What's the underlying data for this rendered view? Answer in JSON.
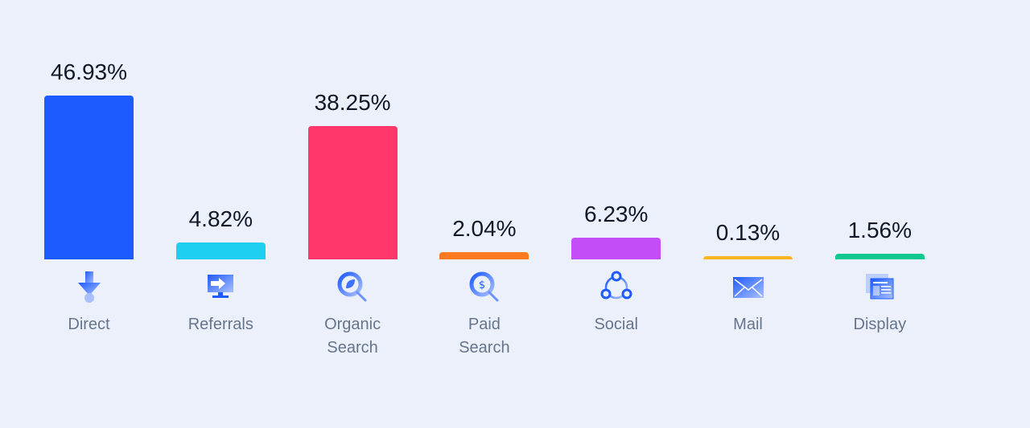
{
  "chart_data": {
    "type": "bar",
    "title": "",
    "xlabel": "",
    "ylabel": "",
    "ylim": [
      0,
      46.93
    ],
    "grid": false,
    "categories": [
      "Direct",
      "Referrals",
      "Organic\nSearch",
      "Paid\nSearch",
      "Social",
      "Mail",
      "Display"
    ],
    "values": [
      46.93,
      4.82,
      38.25,
      2.04,
      6.23,
      0.13,
      1.56
    ],
    "value_labels": [
      "46.93%",
      "4.82%",
      "38.25%",
      "2.04%",
      "6.23%",
      "0.13%",
      "1.56%"
    ],
    "colors": [
      "#1d5bff",
      "#1fcff2",
      "#ff376b",
      "#fb7a1f",
      "#c44df7",
      "#fbb31f",
      "#0ec98f"
    ],
    "icons": [
      "arrow-down-icon",
      "monitor-arrow-icon",
      "search-leaf-icon",
      "search-dollar-icon",
      "share-network-icon",
      "mail-icon",
      "display-window-icon"
    ]
  }
}
